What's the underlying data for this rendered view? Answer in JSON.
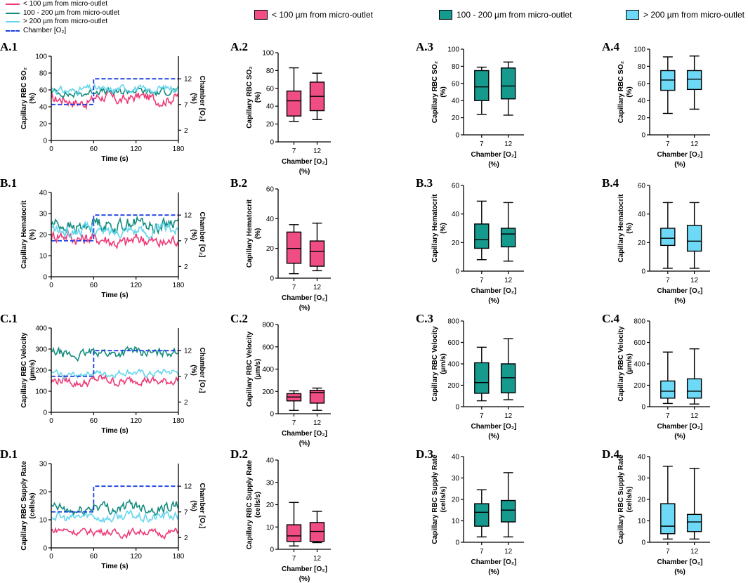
{
  "colors": {
    "near": "#ee3a78",
    "mid": "#128b7d",
    "far": "#66d6ee",
    "chamber": "#1a3fe0",
    "box_near": "#f14d85",
    "box_mid": "#179a8e",
    "box_far": "#6ed9f6"
  },
  "line_legend": {
    "items": [
      {
        "key": "near",
        "label": "< 100 µm from micro-outlet"
      },
      {
        "key": "mid",
        "label": "100 - 200 µm from micro-outlet"
      },
      {
        "key": "far",
        "label": "> 200 µm from micro-outlet"
      },
      {
        "key": "chamber",
        "label": "Chamber [O₂]"
      }
    ]
  },
  "box_legend": {
    "items": [
      {
        "key": "box_near",
        "label": "< 100 µm from micro-outlet"
      },
      {
        "key": "box_mid",
        "label": "100 - 200 µm from micro-outlet"
      },
      {
        "key": "box_far",
        "label": "> 200 µm from micro-outlet"
      }
    ]
  },
  "chart_data": [
    {
      "panel": "A.1",
      "type": "line",
      "xlabel": "Time (s)",
      "ylabel_lines": [
        "Capillary RBC SO₂",
        "(%)"
      ],
      "y2label_lines": [
        "Chamber [O₂]",
        "(%)"
      ],
      "xlim": [
        0,
        180
      ],
      "xticks": [
        "0",
        "60",
        "120",
        "180"
      ],
      "ylim": [
        0,
        100
      ],
      "yticks": [
        "0",
        "20",
        "40",
        "60",
        "80",
        "100"
      ],
      "y2ticks": [
        {
          "label": "2",
          "value": 2
        },
        {
          "label": "7",
          "value": 7
        },
        {
          "label": "12",
          "value": 12
        }
      ],
      "y2lim": [
        0,
        16.4
      ],
      "series": [
        {
          "key": "near",
          "name": "< 100 µm from micro-outlet",
          "base": 47,
          "amp": 6,
          "shift": 3
        },
        {
          "key": "mid",
          "name": "100 - 200 µm from micro-outlet",
          "base": 56,
          "amp": 4,
          "shift": 2
        },
        {
          "key": "far",
          "name": "> 200 µm from micro-outlet",
          "base": 60,
          "amp": 4,
          "shift": 1
        }
      ],
      "chamber": {
        "low": 7,
        "high": 12,
        "switch": 60
      }
    },
    {
      "panel": "B.1",
      "type": "line",
      "xlabel": "Time (s)",
      "ylabel_lines": [
        "Capillary Hematocrit",
        "(%)"
      ],
      "y2label_lines": [
        "Chamber [O₂]",
        "(%)"
      ],
      "xlim": [
        0,
        180
      ],
      "xticks": [
        "0",
        "60",
        "120",
        "180"
      ],
      "ylim": [
        0,
        40
      ],
      "yticks": [
        "0",
        "10",
        "20",
        "30",
        "40"
      ],
      "y2ticks": [
        {
          "label": "2",
          "value": 2
        },
        {
          "label": "7",
          "value": 7
        },
        {
          "label": "12",
          "value": 12
        }
      ],
      "y2lim": [
        0,
        16.4
      ],
      "series": [
        {
          "key": "near",
          "name": "< 100 µm from micro-outlet",
          "base": 19,
          "amp": 3,
          "shift": -2
        },
        {
          "key": "mid",
          "name": "100 - 200 µm from micro-outlet",
          "base": 24,
          "amp": 3,
          "shift": 1
        },
        {
          "key": "far",
          "name": "> 200 µm from micro-outlet",
          "base": 22,
          "amp": 2.5,
          "shift": 0
        }
      ],
      "chamber": {
        "low": 7,
        "high": 12,
        "switch": 60
      }
    },
    {
      "panel": "C.1",
      "type": "line",
      "xlabel": "Time (s)",
      "ylabel_lines": [
        "Capillary RBC Velocity",
        "(µm/s)"
      ],
      "y2label_lines": [
        "Chamber [O₂]",
        "(%)"
      ],
      "xlim": [
        0,
        180
      ],
      "xticks": [
        "0",
        "60",
        "120",
        "180"
      ],
      "ylim": [
        0,
        400
      ],
      "yticks": [
        "0",
        "100",
        "200",
        "300",
        "400"
      ],
      "y2ticks": [
        {
          "label": "2",
          "value": 2
        },
        {
          "label": "7",
          "value": 7
        },
        {
          "label": "12",
          "value": 12
        }
      ],
      "y2lim": [
        0,
        16.4
      ],
      "series": [
        {
          "key": "near",
          "name": "< 100 µm from micro-outlet",
          "base": 145,
          "amp": 20,
          "shift": 5
        },
        {
          "key": "mid",
          "name": "100 - 200 µm from micro-outlet",
          "base": 275,
          "amp": 20,
          "shift": 10
        },
        {
          "key": "far",
          "name": "> 200 µm from micro-outlet",
          "base": 180,
          "amp": 15,
          "shift": 5
        }
      ],
      "chamber": {
        "low": 7,
        "high": 12,
        "switch": 60
      }
    },
    {
      "panel": "D.1",
      "type": "line",
      "xlabel": "Time (s)",
      "ylabel_lines": [
        "Capillary RBC Supply Rate",
        "(cells/s)"
      ],
      "y2label_lines": [
        "Chamber [O₂]",
        "(%)"
      ],
      "xlim": [
        0,
        180
      ],
      "xticks": [
        "0",
        "60",
        "120",
        "180"
      ],
      "ylim": [
        0,
        30
      ],
      "yticks": [
        "0",
        "10",
        "20",
        "30"
      ],
      "y2ticks": [
        {
          "label": "2",
          "value": 2
        },
        {
          "label": "7",
          "value": 7
        },
        {
          "label": "12",
          "value": 12
        }
      ],
      "y2lim": [
        0,
        16.4
      ],
      "series": [
        {
          "key": "near",
          "name": "< 100 µm from micro-outlet",
          "base": 6,
          "amp": 1.2,
          "shift": -0.5
        },
        {
          "key": "mid",
          "name": "100 - 200 µm from micro-outlet",
          "base": 13.5,
          "amp": 1.8,
          "shift": 1
        },
        {
          "key": "far",
          "name": "> 200 µm from micro-outlet",
          "base": 11,
          "amp": 1.5,
          "shift": 0
        }
      ],
      "chamber": {
        "low": 7,
        "high": 12,
        "switch": 60
      }
    },
    {
      "panel": "A.2",
      "type": "box",
      "color_key": "box_near",
      "ylabel_lines": [
        "Capillary RBC SO₂",
        "(%)"
      ],
      "ylim": [
        0,
        100
      ],
      "yticks": [
        "0",
        "20",
        "40",
        "60",
        "80",
        "100"
      ],
      "categories": [
        "7",
        "12"
      ],
      "xlabel_lines": [
        "Chamber [O₂]",
        "(%)"
      ],
      "boxes": [
        {
          "min": 23,
          "q1": 29,
          "median": 46,
          "q3": 57,
          "max": 83
        },
        {
          "min": 25,
          "q1": 35,
          "median": 51,
          "q3": 67,
          "max": 77
        }
      ]
    },
    {
      "panel": "A.3",
      "type": "box",
      "color_key": "box_mid",
      "ylabel_lines": [
        "Capillary RBC SO₂",
        "(%)"
      ],
      "ylim": [
        0,
        100
      ],
      "yticks": [
        "0",
        "20",
        "40",
        "60",
        "80",
        "100"
      ],
      "categories": [
        "7",
        "12"
      ],
      "xlabel_lines": [
        "Chamber [O₂]",
        "(%)"
      ],
      "boxes": [
        {
          "min": 24,
          "q1": 40,
          "median": 56,
          "q3": 75,
          "max": 79
        },
        {
          "min": 23,
          "q1": 42,
          "median": 57,
          "q3": 78,
          "max": 85
        }
      ]
    },
    {
      "panel": "A.4",
      "type": "box",
      "color_key": "box_far",
      "ylabel_lines": [
        "Capillary RBC SO₂",
        "(%)"
      ],
      "ylim": [
        0,
        100
      ],
      "yticks": [
        "0",
        "20",
        "40",
        "60",
        "80",
        "100"
      ],
      "categories": [
        "7",
        "12"
      ],
      "xlabel_lines": [
        "Chamber [O₂]",
        "(%)"
      ],
      "boxes": [
        {
          "min": 25,
          "q1": 52,
          "median": 64,
          "q3": 75,
          "max": 91
        },
        {
          "min": 30,
          "q1": 53,
          "median": 65,
          "q3": 75,
          "max": 92
        }
      ]
    },
    {
      "panel": "B.2",
      "type": "box",
      "color_key": "box_near",
      "ylabel_lines": [
        "Capillary Hematocrit",
        "(%)"
      ],
      "ylim": [
        0,
        60
      ],
      "yticks": [
        "0",
        "20",
        "40",
        "60"
      ],
      "categories": [
        "7",
        "12"
      ],
      "xlabel_lines": [
        "Chamber [O₂]",
        "(%)"
      ],
      "boxes": [
        {
          "min": 3,
          "q1": 10,
          "median": 20,
          "q3": 31,
          "max": 36
        },
        {
          "min": 5,
          "q1": 8,
          "median": 18,
          "q3": 25,
          "max": 37
        }
      ]
    },
    {
      "panel": "B.3",
      "type": "box",
      "color_key": "box_mid",
      "ylabel_lines": [
        "Capillary Hematocrit",
        "(%)"
      ],
      "ylim": [
        0,
        60
      ],
      "yticks": [
        "0",
        "20",
        "40",
        "60"
      ],
      "categories": [
        "7",
        "12"
      ],
      "xlabel_lines": [
        "Chamber [O₂]",
        "(%)"
      ],
      "boxes": [
        {
          "min": 8,
          "q1": 16,
          "median": 22,
          "q3": 33,
          "max": 49
        },
        {
          "min": 7,
          "q1": 17,
          "median": 26,
          "q3": 30,
          "max": 48
        }
      ]
    },
    {
      "panel": "B.4",
      "type": "box",
      "color_key": "box_far",
      "ylabel_lines": [
        "Capillary Hematocrit",
        "(%)"
      ],
      "ylim": [
        0,
        60
      ],
      "yticks": [
        "0",
        "20",
        "40",
        "60"
      ],
      "categories": [
        "7",
        "12"
      ],
      "xlabel_lines": [
        "Chamber [O₂]",
        "(%)"
      ],
      "boxes": [
        {
          "min": 2,
          "q1": 18,
          "median": 23,
          "q3": 30,
          "max": 48
        },
        {
          "min": 2,
          "q1": 14,
          "median": 21,
          "q3": 32,
          "max": 48
        }
      ]
    },
    {
      "panel": "C.2",
      "type": "box",
      "color_key": "box_near",
      "ylabel_lines": [
        "Capillary RBC Velocity",
        "(µm/s)"
      ],
      "ylim": [
        0,
        800
      ],
      "yticks": [
        "0",
        "200",
        "400",
        "600",
        "800"
      ],
      "categories": [
        "7",
        "12"
      ],
      "xlabel_lines": [
        "Chamber [O₂]",
        "(%)"
      ],
      "boxes": [
        {
          "min": 30,
          "q1": 115,
          "median": 150,
          "q3": 180,
          "max": 205
        },
        {
          "min": 30,
          "q1": 95,
          "median": 190,
          "q3": 210,
          "max": 230
        }
      ]
    },
    {
      "panel": "C.3",
      "type": "box",
      "color_key": "box_mid",
      "ylabel_lines": [
        "Capillary RBC Velocity",
        "(µm/s)"
      ],
      "ylim": [
        0,
        800
      ],
      "yticks": [
        "0",
        "200",
        "400",
        "600",
        "800"
      ],
      "categories": [
        "7",
        "12"
      ],
      "xlabel_lines": [
        "Chamber [O₂]",
        "(%)"
      ],
      "boxes": [
        {
          "min": 55,
          "q1": 125,
          "median": 225,
          "q3": 410,
          "max": 555
        },
        {
          "min": 65,
          "q1": 130,
          "median": 270,
          "q3": 400,
          "max": 635
        }
      ]
    },
    {
      "panel": "C.4",
      "type": "box",
      "color_key": "box_far",
      "ylabel_lines": [
        "Capillary RBC Velocity",
        "(µm/s)"
      ],
      "ylim": [
        0,
        800
      ],
      "yticks": [
        "0",
        "200",
        "400",
        "600",
        "800"
      ],
      "categories": [
        "7",
        "12"
      ],
      "xlabel_lines": [
        "Chamber [O₂]",
        "(%)"
      ],
      "boxes": [
        {
          "min": 30,
          "q1": 80,
          "median": 145,
          "q3": 240,
          "max": 510
        },
        {
          "min": 25,
          "q1": 80,
          "median": 145,
          "q3": 260,
          "max": 540
        }
      ]
    },
    {
      "panel": "D.2",
      "type": "box",
      "color_key": "box_near",
      "ylabel_lines": [
        "Capillary RBC Supply Rate",
        "(cells/s)"
      ],
      "ylim": [
        0,
        40
      ],
      "yticks": [
        "0",
        "10",
        "20",
        "30",
        "40"
      ],
      "categories": [
        "7",
        "12"
      ],
      "xlabel_lines": [
        "Chamber [O₂]",
        "(%)"
      ],
      "boxes": [
        {
          "min": 1.5,
          "q1": 3.5,
          "median": 6,
          "q3": 11,
          "max": 21
        },
        {
          "min": 3,
          "q1": 3.5,
          "median": 8,
          "q3": 12,
          "max": 17
        }
      ]
    },
    {
      "panel": "D.3",
      "type": "box",
      "color_key": "box_mid",
      "ylabel_lines": [
        "Capillary RBC Supply Rate",
        "(cells/s)"
      ],
      "ylim": [
        0,
        40
      ],
      "yticks": [
        "0",
        "10",
        "20",
        "30",
        "40"
      ],
      "categories": [
        "7",
        "12"
      ],
      "xlabel_lines": [
        "Chamber [O₂]",
        "(%)"
      ],
      "boxes": [
        {
          "min": 2.5,
          "q1": 7.5,
          "median": 14,
          "q3": 18,
          "max": 24.5
        },
        {
          "min": 2.5,
          "q1": 9.5,
          "median": 15,
          "q3": 19.5,
          "max": 32.5
        }
      ]
    },
    {
      "panel": "D.4",
      "type": "box",
      "color_key": "box_far",
      "ylabel_lines": [
        "Capillary RBC Supply Rate",
        "(cells/s)"
      ],
      "ylim": [
        0,
        40
      ],
      "yticks": [
        "0",
        "10",
        "20",
        "30",
        "40"
      ],
      "categories": [
        "7",
        "12"
      ],
      "xlabel_lines": [
        "Chamber [O₂]",
        "(%)"
      ],
      "boxes": [
        {
          "min": 1.5,
          "q1": 4,
          "median": 7.5,
          "q3": 18,
          "max": 35.5
        },
        {
          "min": 1.5,
          "q1": 5,
          "median": 9.5,
          "q3": 13,
          "max": 34.5
        }
      ]
    }
  ]
}
